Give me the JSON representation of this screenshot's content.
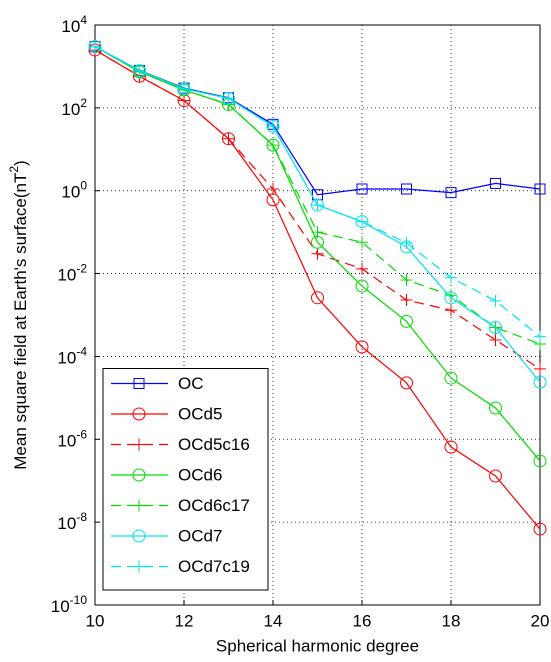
{
  "chart_data": {
    "type": "line",
    "xlabel": "Spherical harmonic degree",
    "ylabel": "Mean square field at Earth's surface(nT^2)",
    "x": [
      10,
      11,
      12,
      13,
      14,
      15,
      16,
      17,
      18,
      19,
      20
    ],
    "xlim": [
      10,
      20
    ],
    "xticks": [
      10,
      12,
      14,
      16,
      18,
      20
    ],
    "ylim": [
      1e-10,
      10000
    ],
    "log_y": true,
    "yticks": [
      {
        "value": 1e-10,
        "label": "10^-10"
      },
      {
        "value": 1e-08,
        "label": "10^-8"
      },
      {
        "value": 1e-06,
        "label": "10^-6"
      },
      {
        "value": 0.0001,
        "label": "10^-4"
      },
      {
        "value": 0.01,
        "label": "10^-2"
      },
      {
        "value": 1,
        "label": "10^0"
      },
      {
        "value": 100,
        "label": "10^2"
      },
      {
        "value": 10000,
        "label": "10^4"
      }
    ],
    "grid": true,
    "legend": "lower left",
    "series": [
      {
        "name": "OC",
        "color": "#0000ff",
        "marker": "square",
        "linestyle": "solid",
        "values": [
          3000,
          800,
          300,
          175,
          40,
          0.8,
          1.1,
          1.1,
          0.9,
          1.5,
          1.1
        ]
      },
      {
        "name": "OCd5",
        "color": "#ff0000",
        "marker": "circle",
        "linestyle": "solid",
        "values": [
          2500,
          580,
          150,
          18,
          0.6,
          0.0026,
          0.00017,
          2.3e-05,
          6.5e-07,
          1.3e-07,
          6.8e-09
        ]
      },
      {
        "name": "OCd5c16",
        "color": "#ff0000",
        "marker": "plus",
        "linestyle": "dashed",
        "values": [
          2500,
          580,
          150,
          18,
          1.1,
          0.03,
          0.013,
          0.0023,
          0.0013,
          0.00025,
          5e-05
        ]
      },
      {
        "name": "OCd6",
        "color": "#00dd00",
        "marker": "circle",
        "linestyle": "solid",
        "values": [
          3000,
          740,
          270,
          120,
          12.6,
          0.057,
          0.005,
          0.0007,
          3e-05,
          5.7e-06,
          3e-07
        ]
      },
      {
        "name": "OCd6c17",
        "color": "#00dd00",
        "marker": "plus",
        "linestyle": "dashed",
        "values": [
          3000,
          740,
          270,
          120,
          12.6,
          0.1,
          0.057,
          0.007,
          0.003,
          0.0005,
          0.0002
        ]
      },
      {
        "name": "OCd7",
        "color": "#00e5ee",
        "marker": "circle",
        "linestyle": "solid",
        "values": [
          3000,
          790,
          290,
          170,
          36,
          0.45,
          0.18,
          0.044,
          0.0026,
          0.0005,
          2.4e-05
        ]
      },
      {
        "name": "OCd7c19",
        "color": "#00e5ee",
        "marker": "plus",
        "linestyle": "dashed",
        "values": [
          3000,
          790,
          290,
          170,
          36,
          0.45,
          0.18,
          0.055,
          0.008,
          0.0022,
          0.0003
        ]
      }
    ]
  }
}
